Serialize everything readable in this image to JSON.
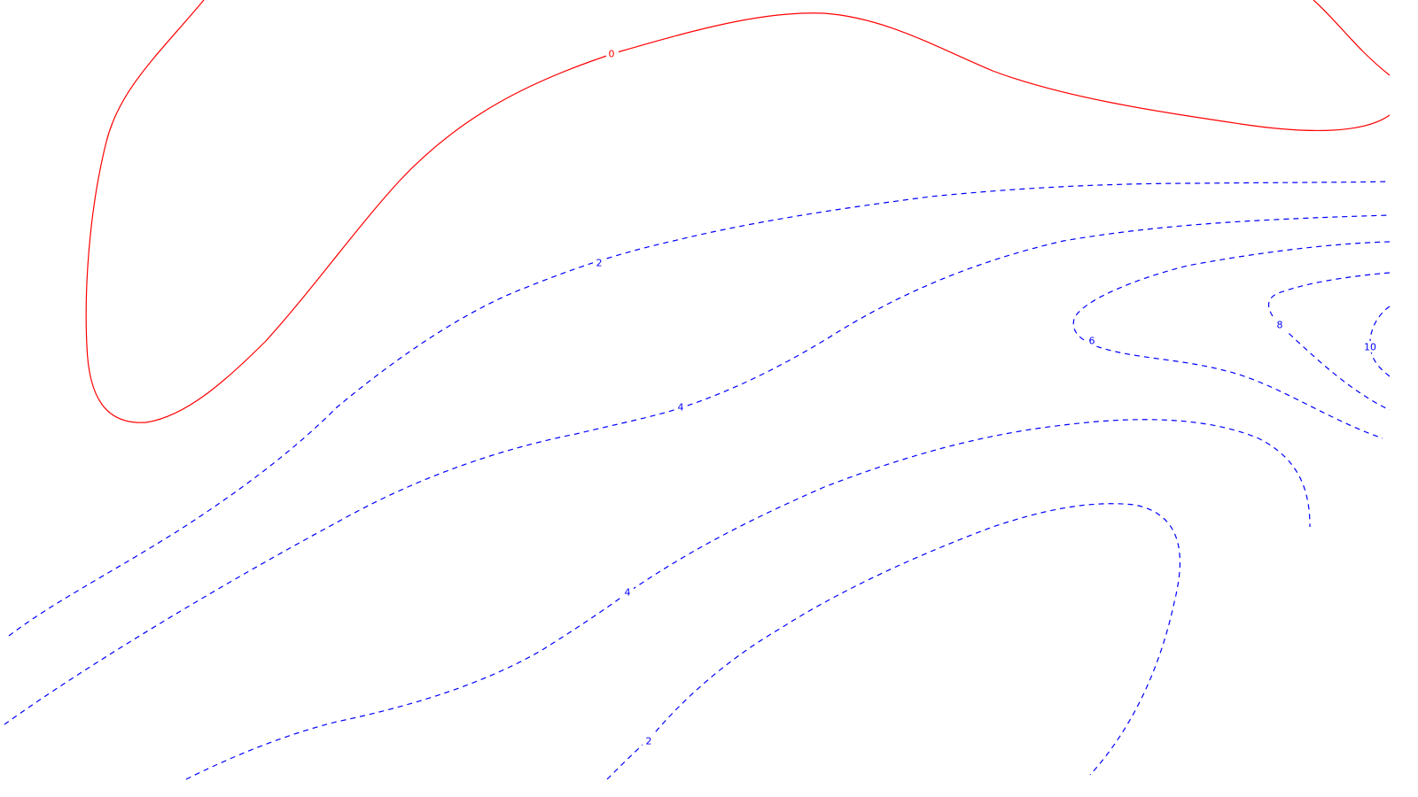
{
  "chart_data": {
    "type": "contour",
    "title": "",
    "xlabel": "",
    "ylabel": "",
    "grid": false,
    "legend": "none",
    "colors": {
      "zero": "#ff0000",
      "negative": "#0000ff"
    },
    "levels": [
      {
        "id": "zero-level-0",
        "value": 0,
        "label": "0",
        "style": "solid",
        "color": "#ff0000"
      },
      {
        "id": "level-2-upper",
        "value": 2,
        "label": "2",
        "style": "dashed",
        "color": "#0000ff"
      },
      {
        "id": "level-4-upper",
        "value": 4,
        "label": "4",
        "style": "dashed",
        "color": "#0000ff"
      },
      {
        "id": "level-6",
        "value": 6,
        "label": "6",
        "style": "dashed",
        "color": "#0000ff"
      },
      {
        "id": "level-8",
        "value": 8,
        "label": "8",
        "style": "dashed",
        "color": "#0000ff"
      },
      {
        "id": "level-10",
        "value": 10,
        "label": "10",
        "style": "dashed",
        "color": "#0000ff"
      },
      {
        "id": "level-4-lower",
        "value": 4,
        "label": "4",
        "style": "dashed",
        "color": "#0000ff"
      },
      {
        "id": "level-2-lower",
        "value": 2,
        "label": "2",
        "style": "dashed",
        "color": "#0000ff"
      }
    ]
  }
}
